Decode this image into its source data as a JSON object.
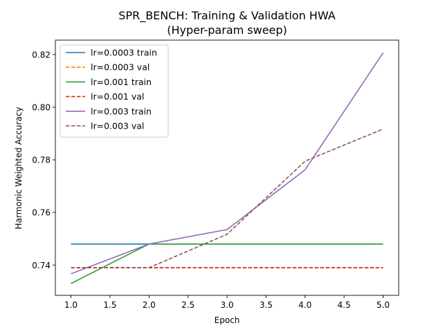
{
  "chart_data": {
    "type": "line",
    "title": "SPR_BENCH: Training & Validation HWA",
    "subtitle": "(Hyper-param sweep)",
    "xlabel": "Epoch",
    "ylabel": "Harmonic Weighted Accuracy",
    "xlim": [
      0.8,
      5.2
    ],
    "ylim": [
      0.7285,
      0.8255
    ],
    "x_ticks": [
      1.0,
      1.5,
      2.0,
      2.5,
      3.0,
      3.5,
      4.0,
      4.5,
      5.0
    ],
    "x_tick_labels": [
      "1.0",
      "1.5",
      "2.0",
      "2.5",
      "3.0",
      "3.5",
      "4.0",
      "4.5",
      "5.0"
    ],
    "y_ticks": [
      0.74,
      0.76,
      0.78,
      0.8,
      0.82
    ],
    "y_tick_labels": [
      "0.74",
      "0.76",
      "0.78",
      "0.80",
      "0.82"
    ],
    "grid": false,
    "legend_position": "top-left",
    "x": [
      1,
      2,
      3,
      4,
      5
    ],
    "series": [
      {
        "name": "lr=0.0003 train",
        "values": [
          0.748,
          0.748,
          0.748,
          0.748,
          0.748
        ],
        "color": "#1f77b4",
        "dash": false
      },
      {
        "name": "lr=0.0003 val",
        "values": [
          0.739,
          0.739,
          0.739,
          0.739,
          0.739
        ],
        "color": "#ff7f0e",
        "dash": true
      },
      {
        "name": "lr=0.001 train",
        "values": [
          0.733,
          0.748,
          0.748,
          0.748,
          0.748
        ],
        "color": "#2ca02c",
        "dash": false
      },
      {
        "name": "lr=0.001 val",
        "values": [
          0.739,
          0.739,
          0.739,
          0.739,
          0.739
        ],
        "color": "#d62728",
        "dash": true
      },
      {
        "name": "lr=0.003 train",
        "values": [
          0.7367,
          0.748,
          0.7535,
          0.7762,
          0.8207
        ],
        "color": "#9467bd",
        "dash": false
      },
      {
        "name": "lr=0.003 val",
        "values": [
          0.739,
          0.739,
          0.7517,
          0.7795,
          0.7917
        ],
        "color": "#8c564b",
        "dash": true
      }
    ]
  }
}
